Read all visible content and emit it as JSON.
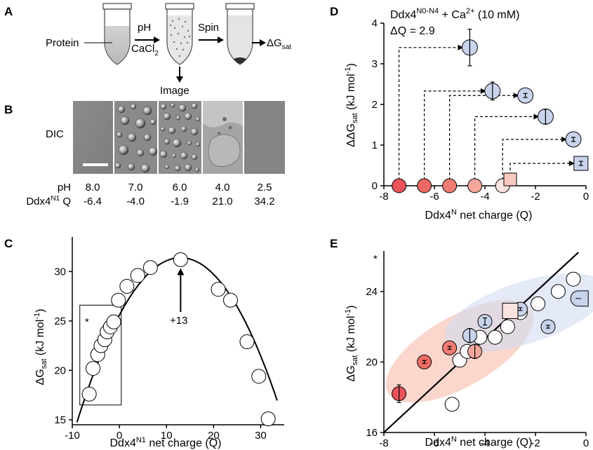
{
  "panels": {
    "A": {
      "label": "A",
      "protein": "Protein",
      "ph": "pH",
      "cacl": "CaCl",
      "cacl_sub": "2",
      "spin": "Spin",
      "image": "Image",
      "dg": "ΔG",
      "dg_sub": "sat"
    },
    "B": {
      "label": "B",
      "dic": "DIC",
      "row1_label": "pH",
      "row2_label": "Ddx4",
      "row2_sup": "N1",
      "row2_suffix": " Q",
      "ph": [
        "8.0",
        "7.0",
        "6.0",
        "4.0",
        "2.5"
      ],
      "q": [
        "-6.4",
        "-4.0",
        "-1.9",
        "21.0",
        "34.2"
      ]
    },
    "C": {
      "label": "C",
      "ylabel_pre": "ΔG",
      "ylabel_sub": "sat",
      "ylabel_post": " (kJ mol",
      "ylabel_sup": "-1",
      "ylabel_end": ")",
      "xlabel_pre": "Ddx4",
      "xlabel_sup": "N1",
      "xlabel_post": " net charge (Q)",
      "star": "*",
      "annotation": "+13"
    },
    "D": {
      "label": "D",
      "title_pre": "Ddx4",
      "title_sup": "N0-N4",
      "title_mid": " + Ca",
      "title_sup2": "2+",
      "title_post": " (10 mM)",
      "dq": "ΔQ = 2.9",
      "ylabel_pre": "ΔΔG",
      "ylabel_sub": "sat",
      "ylabel_post": " (kJ mol",
      "ylabel_sup": "-1",
      "ylabel_end": ")",
      "xlabel_pre": "Ddx4",
      "xlabel_sup": "N",
      "xlabel_post": " net charge (Q)"
    },
    "E": {
      "label": "E",
      "star": "*",
      "ylabel_pre": "ΔG",
      "ylabel_sub": "sat",
      "ylabel_post": " (kJ mol",
      "ylabel_sup": "-1",
      "ylabel_end": ")",
      "xlabel_pre": "Ddx4",
      "xlabel_sup": "N",
      "xlabel_post": " net charge (Q)"
    }
  },
  "colors": {
    "red_dark": "#e8545a",
    "red_mid": "#ef7c72",
    "red_light": "#f4a69a",
    "red_pale": "#f8c9c0",
    "pink": "#fbe3e0",
    "blue": "#c8d3ec",
    "blue_fill": "#c5d2ec",
    "red_ellipse": "#f5b4a4",
    "blue_ellipse": "#d2dcf1"
  },
  "chart_data": [
    {
      "panel": "C",
      "type": "scatter",
      "xlabel": "Ddx4N1 net charge (Q)",
      "ylabel": "ΔGsat (kJ mol-1)",
      "xlim": [
        -10,
        35
      ],
      "ylim": [
        14.5,
        33.5
      ],
      "xticks": [
        -10,
        0,
        10,
        20,
        30
      ],
      "yticks": [
        15,
        20,
        25,
        30
      ],
      "points": [
        {
          "x": -6.4,
          "y": 17.6
        },
        {
          "x": -5.6,
          "y": 20.2
        },
        {
          "x": -4.6,
          "y": 21.6
        },
        {
          "x": -3.9,
          "y": 22.5
        },
        {
          "x": -3.1,
          "y": 23.1
        },
        {
          "x": -2.6,
          "y": 23.9
        },
        {
          "x": -1.9,
          "y": 24.4
        },
        {
          "x": -1.2,
          "y": 24.9
        },
        {
          "x": -0.2,
          "y": 27.1
        },
        {
          "x": 1.6,
          "y": 28.5
        },
        {
          "x": 3.9,
          "y": 29.6
        },
        {
          "x": 6.6,
          "y": 30.4
        },
        {
          "x": 13.0,
          "y": 31.2
        },
        {
          "x": 21.0,
          "y": 28.2
        },
        {
          "x": 23.6,
          "y": 27.1
        },
        {
          "x": 27.1,
          "y": 22.9
        },
        {
          "x": 29.6,
          "y": 19.4
        },
        {
          "x": 31.6,
          "y": 15.1
        }
      ],
      "fit": "parabola, peak at Q = 13",
      "peak": {
        "x": 13,
        "y": 31.4
      },
      "box": {
        "x": [
          -8.4,
          0.4
        ],
        "y": [
          16.5,
          26.6
        ]
      }
    },
    {
      "panel": "D",
      "type": "scatter",
      "xlabel": "Ddx4N net charge (Q)",
      "ylabel": "ΔΔGsat (kJ mol-1)",
      "xlim": [
        -8,
        0
      ],
      "ylim": [
        0,
        4
      ],
      "xticks": [
        -8,
        -6,
        -4,
        -2,
        0
      ],
      "yticks": [
        0,
        1,
        2,
        3,
        4
      ],
      "base_points": [
        {
          "x": -7.4,
          "y": 0,
          "color": "#e8545a"
        },
        {
          "x": -6.4,
          "y": 0,
          "color": "#ec6a63"
        },
        {
          "x": -5.4,
          "y": 0,
          "color": "#ef7c72"
        },
        {
          "x": -4.4,
          "y": 0,
          "color": "#f4a69a"
        },
        {
          "x": -3.3,
          "y": 0,
          "color": "#fbe3e0"
        },
        {
          "x": -3.0,
          "y": 0,
          "color": "#f8c9c0",
          "shape": "square"
        }
      ],
      "shifted_points": [
        {
          "x": -4.6,
          "y": 3.4,
          "err": 0.45,
          "from": -7.4
        },
        {
          "x": -3.7,
          "y": 2.33,
          "err": 0.22,
          "from": -6.4
        },
        {
          "x": -2.4,
          "y": 2.22,
          "err": 0.05,
          "from": -5.4
        },
        {
          "x": -1.6,
          "y": 1.7,
          "err": 0.18,
          "from": -4.4
        },
        {
          "x": -0.5,
          "y": 1.14,
          "err": 0.05,
          "from": -3.3
        },
        {
          "x": -0.2,
          "y": 0.55,
          "err": 0.05,
          "from": -3.0,
          "shape": "square"
        }
      ]
    },
    {
      "panel": "E",
      "type": "scatter",
      "xlabel": "Ddx4N net charge (Q)",
      "ylabel": "ΔGsat (kJ mol-1)",
      "xlim": [
        -8,
        0
      ],
      "ylim": [
        16,
        26.3
      ],
      "xticks": [
        -8,
        -6,
        -4,
        -2,
        0
      ],
      "yticks": [
        16,
        20,
        24
      ],
      "fit_line": [
        {
          "x": -8,
          "y": 16.0
        },
        {
          "x": -0.3,
          "y": 25.9
        }
      ],
      "white_points": [
        {
          "x": -5.3,
          "y": 17.6
        },
        {
          "x": -5.0,
          "y": 20.1
        },
        {
          "x": -4.7,
          "y": 20.6
        },
        {
          "x": -4.2,
          "y": 21.4
        },
        {
          "x": -3.6,
          "y": 21.4
        },
        {
          "x": -3.1,
          "y": 22.0
        },
        {
          "x": -2.6,
          "y": 22.8
        },
        {
          "x": -1.9,
          "y": 23.3
        },
        {
          "x": -1.1,
          "y": 24.0
        },
        {
          "x": -0.5,
          "y": 24.7
        }
      ],
      "red_points": [
        {
          "x": -7.4,
          "y": 18.2,
          "color": "#e8545a",
          "err": 0.5
        },
        {
          "x": -6.4,
          "y": 20.0,
          "color": "#ec6a63",
          "err": 0.05
        },
        {
          "x": -5.4,
          "y": 20.8,
          "color": "#ef7c72",
          "err": 0.05
        },
        {
          "x": -4.4,
          "y": 20.6,
          "color": "#f4a69a",
          "err": 0.4
        },
        {
          "x": -3.0,
          "y": 22.9,
          "color": "#fbe3e0",
          "shape": "square"
        }
      ],
      "blue_points": [
        {
          "x": -4.6,
          "y": 21.5,
          "err": 0.4
        },
        {
          "x": -4.0,
          "y": 22.3,
          "err": 0.2
        },
        {
          "x": -2.6,
          "y": 23.0,
          "err": 0.05
        },
        {
          "x": -1.5,
          "y": 22.0,
          "err": 0.05
        },
        {
          "x": -0.3,
          "y": 23.6,
          "shape": "half-pill"
        }
      ]
    }
  ]
}
